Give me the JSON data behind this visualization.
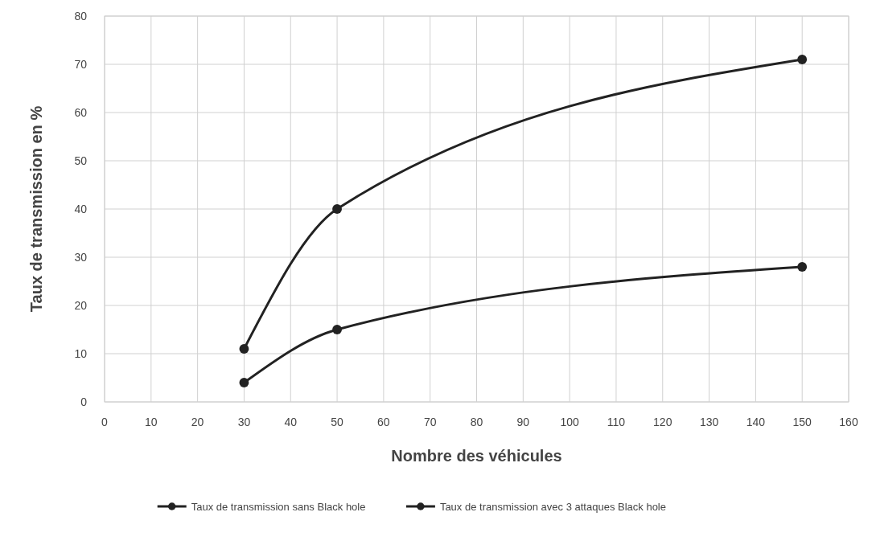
{
  "chart_data": {
    "type": "line",
    "xlabel": "Nombre des véhicules",
    "ylabel": "Taux de transmission en %",
    "x": [
      30,
      50,
      150
    ],
    "series": [
      {
        "name": "Taux de transmission sans Black hole",
        "color": "#222222",
        "values": [
          11,
          40,
          71
        ]
      },
      {
        "name": "Taux de transmission avec 3 attaques Black hole",
        "color": "#222222",
        "values": [
          4,
          15,
          28
        ]
      }
    ],
    "xlim": [
      0,
      160
    ],
    "xticks": [
      0,
      10,
      20,
      30,
      40,
      50,
      60,
      70,
      80,
      90,
      100,
      110,
      120,
      130,
      140,
      150,
      160
    ],
    "ylim": [
      0,
      80
    ],
    "yticks": [
      0,
      10,
      20,
      30,
      40,
      50,
      60,
      70,
      80
    ],
    "grid": true,
    "legend": "bottom",
    "marker": "circle",
    "line_style": "solid"
  }
}
